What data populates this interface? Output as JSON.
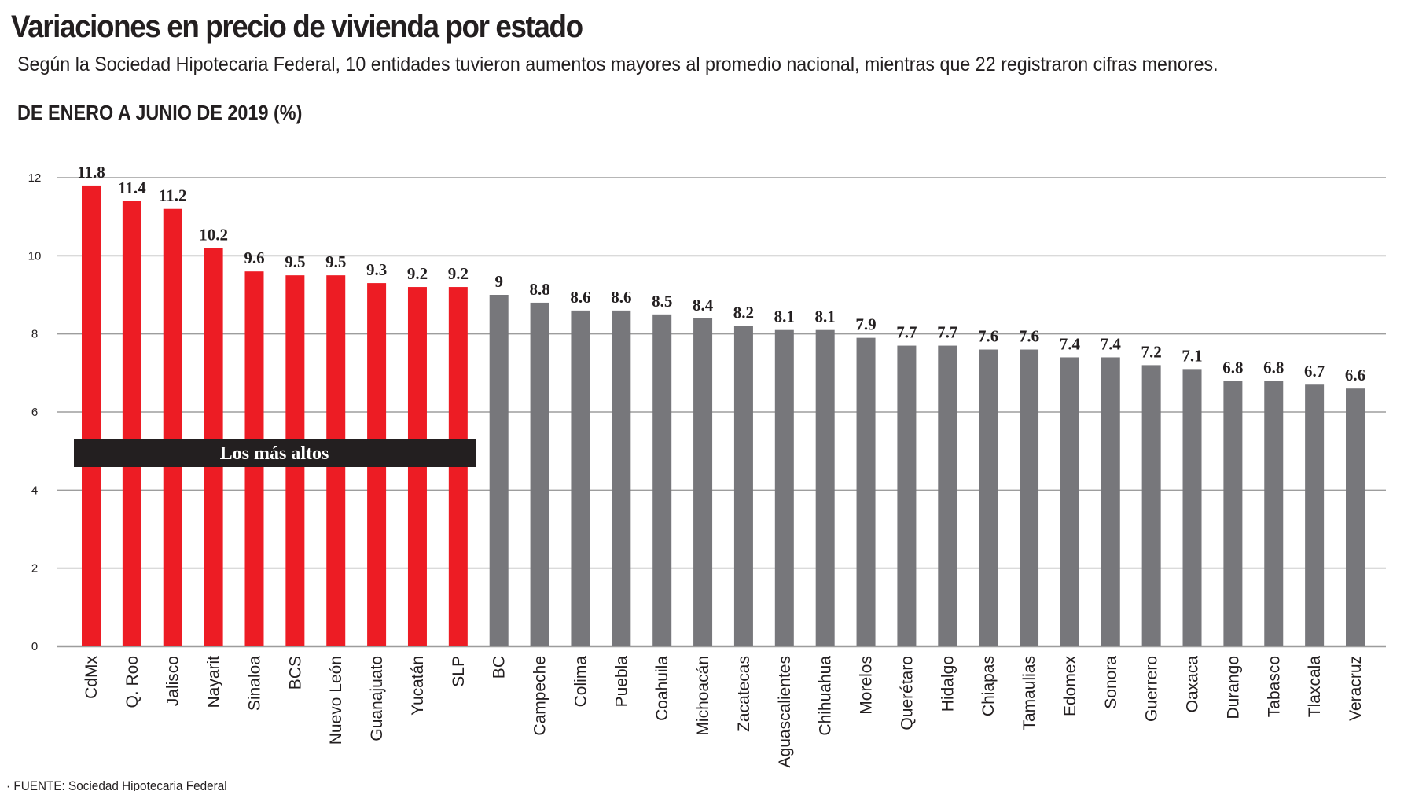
{
  "title": "Variaciones en precio de vivienda por estado",
  "subtitle": "Según la Sociedad Hipotecaria Federal, 10 entidades tuvieron aumentos mayores al promedio nacional, mientras que 22 registraron cifras menores.",
  "period": "DE ENERO A JUNIO DE 2019 (%)",
  "source": "· FUENTE: Sociedad Hipotecaria Federal",
  "colors": {
    "highlight": "#ed1c24",
    "other": "#77777b",
    "grid": "#9d9d9d",
    "band": "#231f20"
  },
  "chart_data": {
    "type": "bar",
    "title": "Variaciones en precio de vivienda por estado",
    "ylabel": "%",
    "ylim": [
      0,
      12
    ],
    "yticks": [
      "0",
      "2",
      "4",
      "6",
      "8",
      "10",
      "12"
    ],
    "grid": true,
    "highlight_count": 10,
    "highlight_label": "Los más altos",
    "categories": [
      "CdMx",
      "Q. Roo",
      "Jalisco",
      "Nayarit",
      "Sinaloa",
      "BCS",
      "Nuevo León",
      "Guanajuato",
      "Yucatán",
      "SLP",
      "BC",
      "Campeche",
      "Colima",
      "Puebla",
      "Coahuila",
      "Michoacán",
      "Zacatecas",
      "Aguascalientes",
      "Chihuahua",
      "Morelos",
      "Querétaro",
      "Hidalgo",
      "Chiapas",
      "Tamaulias",
      "Edomex",
      "Sonora",
      "Guerrero",
      "Oaxaca",
      "Durango",
      "Tabasco",
      "Tlaxcala",
      "Veracruz"
    ],
    "values": [
      11.8,
      11.4,
      11.2,
      10.2,
      9.6,
      9.5,
      9.5,
      9.3,
      9.2,
      9.2,
      9,
      8.8,
      8.6,
      8.6,
      8.5,
      8.4,
      8.2,
      8.1,
      8.1,
      7.9,
      7.7,
      7.7,
      7.6,
      7.6,
      7.4,
      7.4,
      7.2,
      7.1,
      6.8,
      6.8,
      6.7,
      6.6
    ],
    "value_labels": [
      "11.8",
      "11.4",
      "11.2",
      "10.2",
      "9.6",
      "9.5",
      "9.5",
      "9.3",
      "9.2",
      "9.2",
      "9",
      "8.8",
      "8.6",
      "8.6",
      "8.5",
      "8.4",
      "8.2",
      "8.1",
      "8.1",
      "7.9",
      "7.7",
      "7.7",
      "7.6",
      "7.6",
      "7.4",
      "7.4",
      "7.2",
      "7.1",
      "6.8",
      "6.8",
      "6.7",
      "6.6"
    ]
  }
}
